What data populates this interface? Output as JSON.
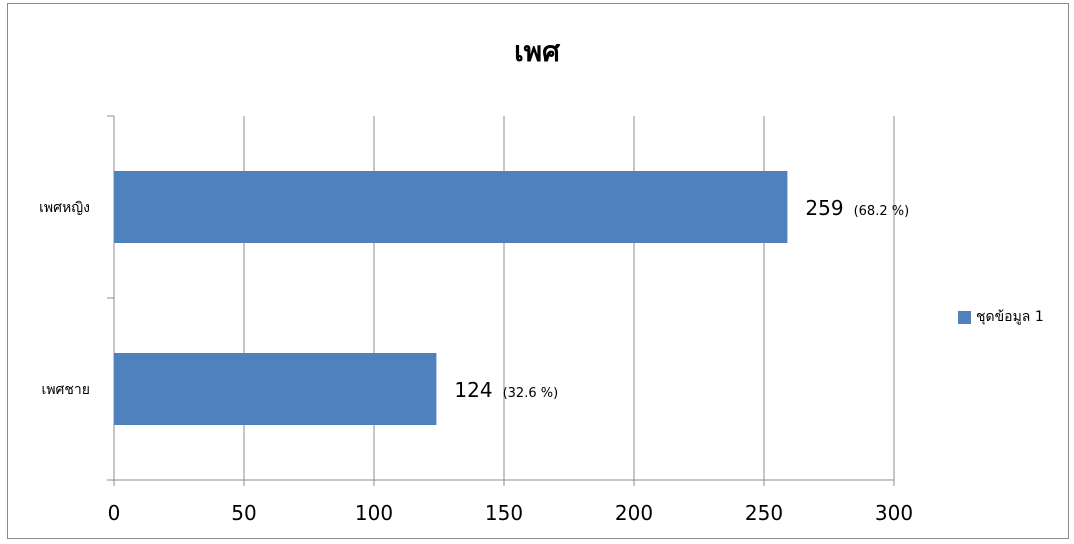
{
  "chart_data": {
    "type": "bar",
    "orientation": "horizontal",
    "title": "เพศ",
    "categories": [
      "เพศหญิง",
      "เพศชาย"
    ],
    "series": [
      {
        "name": "ชุดข้อมูล 1",
        "values": [
          259,
          124
        ],
        "color": "#4f81bd"
      }
    ],
    "data_labels": [
      {
        "value": "259",
        "percent": "(68.2 %)"
      },
      {
        "value": "124",
        "percent": "(32.6 %)"
      }
    ],
    "x_ticks": [
      "0",
      "50",
      "100",
      "150",
      "200",
      "250",
      "300"
    ],
    "xlim": [
      0,
      300
    ],
    "grid": true,
    "legend_position": "right"
  }
}
